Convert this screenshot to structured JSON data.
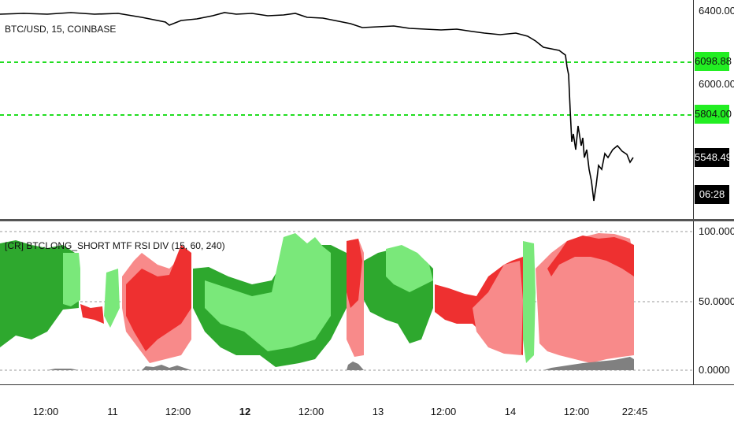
{
  "main_pane": {
    "symbol_label": "BTC/USD, 15, COINBASE",
    "price_scale": [
      "6400.00",
      "6000.00"
    ],
    "levels": [
      {
        "value": "6098.88",
        "color": "#33ee33"
      },
      {
        "value": "5804.00",
        "color": "#33ee33"
      }
    ],
    "last_price": "5548.49",
    "countdown": "06:28"
  },
  "indicator_pane": {
    "title": "[CR] BTCLONG_SHORT MTF RSI DIV (15, 60, 240)",
    "scale": [
      "100.0000",
      "50.0000",
      "0.0000"
    ],
    "colors": {
      "long_dark": "#2ea82e",
      "long_light": "#7ae87a",
      "short_dark": "#ee3030",
      "short_light": "#f88a8a",
      "volume": "#808080",
      "level_line": "#aaaaaa"
    }
  },
  "time_axis": [
    "12:00",
    "11",
    "12:00",
    "12",
    "12:00",
    "13",
    "12:00",
    "14",
    "12:00",
    "22:45"
  ]
}
